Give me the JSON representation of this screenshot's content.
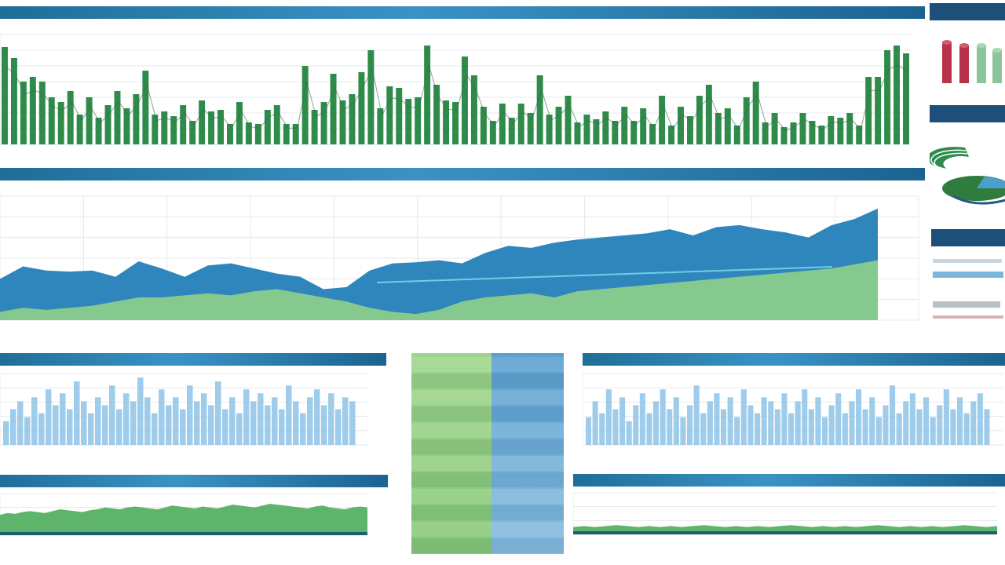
{
  "colors": {
    "header_start": "#1f6e99",
    "header_end": "#3a93c4",
    "green_bar": "#2e8b4a",
    "blue_area": "#2f86bd",
    "green_area": "#8fd08a",
    "light_blue_bars": "#8ec3e6",
    "green_fill": "#5fb46b"
  },
  "panels": {
    "top_title": "",
    "middle_title": "",
    "bl1_title": "",
    "bl2_title": "",
    "br1_title": "",
    "br2_title": ""
  },
  "table": {
    "rows": [
      {
        "left": "",
        "right": ""
      },
      {
        "left": "",
        "right": ""
      },
      {
        "left": "",
        "right": ""
      },
      {
        "left": "",
        "right": ""
      },
      {
        "left": "",
        "right": ""
      },
      {
        "left": "",
        "right": ""
      },
      {
        "left": "",
        "right": ""
      },
      {
        "left": "",
        "right": ""
      },
      {
        "left": "",
        "right": ""
      },
      {
        "left": "",
        "right": ""
      },
      {
        "left": "",
        "right": ""
      },
      {
        "left": "",
        "right": ""
      }
    ]
  },
  "chart_data": [
    {
      "type": "bar",
      "title": "",
      "values": [
        62,
        55,
        40,
        43,
        40,
        30,
        27,
        34,
        19,
        30,
        17,
        25,
        34,
        23,
        32,
        47,
        19,
        21,
        18,
        25,
        15,
        28,
        21,
        22,
        13,
        27,
        14,
        13,
        22,
        25,
        13,
        13,
        50,
        22,
        27,
        45,
        28,
        32,
        46,
        60,
        23,
        37,
        36,
        29,
        30,
        63,
        38,
        28,
        27,
        56,
        44,
        24,
        15,
        26,
        17,
        26,
        20,
        44,
        19,
        24,
        31,
        14,
        19,
        16,
        21,
        15,
        24,
        15,
        23,
        13,
        31,
        12,
        24,
        18,
        31,
        38,
        20,
        23,
        12,
        30,
        40,
        14,
        20,
        11,
        14,
        20,
        15,
        12,
        18,
        17,
        20,
        12,
        43,
        43,
        60,
        63,
        58
      ]
    },
    {
      "type": "area",
      "title": "",
      "series": [
        {
          "values": [
            40,
            52,
            48,
            47,
            48,
            42,
            57,
            50,
            42,
            53,
            55,
            50,
            45,
            42,
            30,
            32,
            48,
            55,
            56,
            58,
            55,
            65,
            72,
            70,
            75,
            78,
            80,
            82,
            84,
            88,
            82,
            90,
            92,
            88,
            85,
            80,
            92,
            98,
            108
          ]
        },
        {
          "values": [
            8,
            12,
            10,
            12,
            14,
            18,
            22,
            22,
            24,
            26,
            24,
            28,
            30,
            26,
            22,
            18,
            12,
            8,
            6,
            10,
            18,
            22,
            24,
            26,
            22,
            28,
            30,
            32,
            34,
            36,
            38,
            40,
            42,
            44,
            46,
            48,
            50,
            54,
            58
          ]
        }
      ]
    },
    {
      "type": "bar",
      "title": "",
      "values": [
        30,
        45,
        55,
        35,
        60,
        40,
        70,
        50,
        65,
        45,
        80,
        55,
        40,
        60,
        50,
        75,
        45,
        65,
        55,
        85,
        60,
        40,
        70,
        50,
        60,
        45,
        75,
        55,
        65,
        50,
        80,
        45,
        60,
        40,
        70,
        55,
        65,
        50,
        60,
        45,
        75,
        55,
        40,
        60,
        70,
        50,
        65,
        45,
        60,
        55
      ]
    },
    {
      "type": "area",
      "title": "",
      "values": [
        22,
        24,
        23,
        25,
        26,
        25,
        24,
        26,
        28,
        27,
        26,
        25,
        27,
        28,
        30,
        29,
        28,
        30,
        31,
        30,
        29,
        28,
        30,
        32,
        31,
        30,
        29,
        31,
        30,
        29,
        31,
        33,
        32,
        31,
        30,
        32,
        34,
        33,
        32,
        31,
        30,
        29,
        31,
        32,
        30,
        29,
        28,
        30,
        31,
        30
      ]
    },
    {
      "type": "bar",
      "title": "",
      "values": [
        35,
        55,
        40,
        70,
        45,
        60,
        30,
        50,
        65,
        40,
        55,
        70,
        45,
        60,
        35,
        50,
        75,
        40,
        55,
        65,
        45,
        60,
        35,
        70,
        50,
        40,
        60,
        55,
        45,
        65,
        40,
        55,
        70,
        45,
        60,
        35,
        50,
        65,
        40,
        55,
        70,
        45,
        60,
        35,
        50,
        75,
        40,
        55,
        65,
        45,
        60,
        35,
        50,
        70,
        45,
        60,
        40,
        55,
        65,
        45
      ]
    },
    {
      "type": "area",
      "title": "",
      "values": [
        8,
        9,
        8,
        9,
        10,
        9,
        8,
        9,
        8,
        9,
        8,
        9,
        10,
        9,
        8,
        9,
        8,
        9,
        8,
        9,
        10,
        9,
        8,
        9,
        8,
        9,
        8,
        9,
        10,
        9,
        8,
        9,
        8,
        9,
        8,
        9,
        10,
        9,
        8,
        9
      ]
    }
  ],
  "sidebar": {
    "title1": "",
    "title2": "",
    "title3": ""
  }
}
